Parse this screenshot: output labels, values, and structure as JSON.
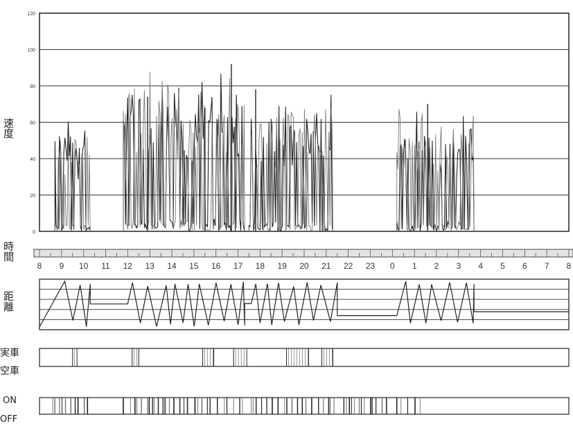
{
  "chart_data": {
    "type": "line",
    "speed_label": "速度",
    "time_label": "時間",
    "distance_label": "距離",
    "loaded_label": "実車",
    "empty_label": "空車",
    "on_label": "ON",
    "off_label": "OFF",
    "ylim": [
      0,
      120
    ],
    "yticks": [
      "0",
      "20",
      "40",
      "60",
      "80",
      "100",
      "120"
    ],
    "hour_labels": [
      "8",
      "9",
      "10",
      "11",
      "12",
      "13",
      "14",
      "15",
      "16",
      "17",
      "18",
      "19",
      "20",
      "21",
      "22",
      "23",
      "0",
      "1",
      "2",
      "3",
      "4",
      "5",
      "6",
      "7",
      "8"
    ],
    "grid": true,
    "speed_segments": [
      {
        "start": 8.7,
        "end": 10.3,
        "max": 66
      },
      {
        "start": 11.8,
        "end": 17.3,
        "max": 92
      },
      {
        "start": 17.5,
        "end": 21.3,
        "max": 78
      },
      {
        "start": 24.2,
        "end": 27.7,
        "max": 70
      }
    ],
    "speed_peaks": [
      {
        "hour": 16.7,
        "value": 92
      },
      {
        "hour": 17.8,
        "value": 78
      },
      {
        "hour": 12.9,
        "value": 74
      },
      {
        "hour": 25.6,
        "value": 70
      },
      {
        "hour": 15.5,
        "value": 68
      }
    ],
    "distance_ranges": [
      {
        "start": 8.8,
        "end": 10.3
      },
      {
        "start": 12.0,
        "end": 17.3
      },
      {
        "start": 17.6,
        "end": 21.5
      },
      {
        "start": 24.2,
        "end": 27.7
      }
    ],
    "loaded_pulses": [
      [
        9.5,
        9.7
      ],
      [
        12.2,
        12.5
      ],
      [
        15.4,
        15.9
      ],
      [
        16.8,
        17.4
      ],
      [
        19.2,
        20.2
      ],
      [
        20.8,
        21.3
      ]
    ],
    "onoff_segments": [
      [
        8.6,
        10.4
      ],
      [
        11.8,
        17.4
      ],
      [
        17.6,
        21.4
      ],
      [
        21.8,
        23.8
      ],
      [
        24.2,
        25.4
      ]
    ]
  }
}
